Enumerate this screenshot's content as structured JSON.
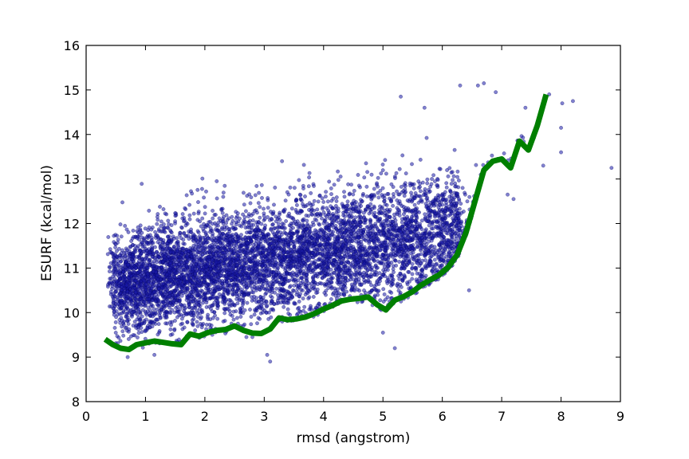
{
  "chart_data": {
    "type": "scatter",
    "title": "",
    "xlabel": "rmsd (angstrom)",
    "ylabel": "ESURF (kcal/mol)",
    "xlim": [
      0,
      9
    ],
    "ylim": [
      8,
      16
    ],
    "xticks": [
      0,
      1,
      2,
      3,
      4,
      5,
      6,
      7,
      8,
      9
    ],
    "yticks": [
      8,
      9,
      10,
      11,
      12,
      13,
      14,
      15,
      16
    ],
    "grid": false,
    "legend": "none",
    "scatter": {
      "color": "#1a1aa8",
      "edge_color": "#00005a",
      "opacity": 0.55,
      "outlier_points": [
        {
          "x": 8.85,
          "y": 13.25
        },
        {
          "x": 8.2,
          "y": 14.75
        },
        {
          "x": 8.02,
          "y": 14.7
        },
        {
          "x": 8.0,
          "y": 14.15
        },
        {
          "x": 8.0,
          "y": 13.6
        },
        {
          "x": 7.8,
          "y": 14.9
        },
        {
          "x": 7.7,
          "y": 13.3
        },
        {
          "x": 7.4,
          "y": 14.6
        },
        {
          "x": 6.7,
          "y": 15.15
        },
        {
          "x": 6.6,
          "y": 15.1
        },
        {
          "x": 6.3,
          "y": 15.1
        },
        {
          "x": 6.9,
          "y": 14.95
        },
        {
          "x": 5.3,
          "y": 14.85
        },
        {
          "x": 5.7,
          "y": 14.6
        },
        {
          "x": 7.1,
          "y": 12.65
        },
        {
          "x": 7.2,
          "y": 12.55
        },
        {
          "x": 6.45,
          "y": 10.5
        },
        {
          "x": 5.0,
          "y": 9.55
        },
        {
          "x": 5.2,
          "y": 9.2
        },
        {
          "x": 3.1,
          "y": 8.9
        },
        {
          "x": 3.05,
          "y": 9.05
        },
        {
          "x": 2.7,
          "y": 9.45
        },
        {
          "x": 1.15,
          "y": 9.05
        },
        {
          "x": 0.7,
          "y": 9.0
        },
        {
          "x": 3.3,
          "y": 13.4
        },
        {
          "x": 2.2,
          "y": 12.95
        },
        {
          "x": 1.2,
          "y": 12.15
        },
        {
          "x": 0.8,
          "y": 11.7
        }
      ]
    },
    "series": [
      {
        "color": "#007f00",
        "x": [
          0.32,
          0.45,
          0.58,
          0.72,
          0.85,
          1.0,
          1.15,
          1.3,
          1.45,
          1.6,
          1.75,
          1.9,
          2.05,
          2.2,
          2.35,
          2.5,
          2.65,
          2.8,
          2.95,
          3.1,
          3.25,
          3.4,
          3.55,
          3.7,
          3.85,
          4.0,
          4.15,
          4.3,
          4.45,
          4.6,
          4.75,
          4.9,
          5.05,
          5.2,
          5.35,
          5.5,
          5.65,
          5.8,
          5.95,
          6.1,
          6.25,
          6.4,
          6.55,
          6.7,
          6.85,
          7.0,
          7.15,
          7.3,
          7.45,
          7.6,
          7.75
        ],
        "y": [
          9.4,
          9.28,
          9.2,
          9.17,
          9.28,
          9.32,
          9.36,
          9.33,
          9.3,
          9.28,
          9.52,
          9.47,
          9.55,
          9.6,
          9.62,
          9.7,
          9.6,
          9.54,
          9.53,
          9.63,
          9.88,
          9.84,
          9.86,
          9.9,
          9.98,
          10.08,
          10.16,
          10.26,
          10.3,
          10.32,
          10.35,
          10.18,
          10.06,
          10.28,
          10.36,
          10.47,
          10.62,
          10.74,
          10.85,
          11.02,
          11.3,
          11.8,
          12.5,
          13.2,
          13.4,
          13.45,
          13.25,
          13.85,
          13.65,
          14.2,
          14.9
        ]
      }
    ]
  }
}
